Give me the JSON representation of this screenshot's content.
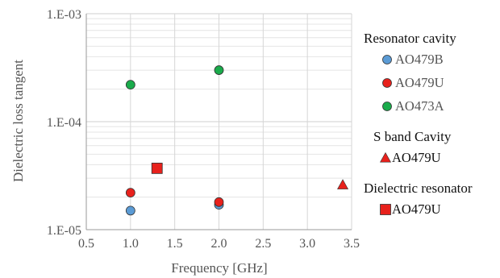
{
  "chart_data": {
    "type": "scatter",
    "xlabel": "Frequency [GHz]",
    "ylabel": "Dielectric  loss tangent",
    "xlim": [
      0.5,
      3.5
    ],
    "ylim": [
      1e-05,
      0.001
    ],
    "y_scale": "log",
    "grid": true,
    "x_ticks": [
      "0.5",
      "1.0",
      "1.5",
      "2.0",
      "2.5",
      "3.0",
      "3.5"
    ],
    "y_ticks": [
      "1.E-05",
      "1.E-04",
      "1.E-03"
    ],
    "legend_placement": "right",
    "groups": [
      {
        "title": "Resonator cavity",
        "series": [
          {
            "name": "AO479B",
            "marker": "circle",
            "color": "#5b9bd5",
            "points": [
              {
                "x": 1.0,
                "y": 1.5e-05
              },
              {
                "x": 2.0,
                "y": 1.7e-05
              }
            ]
          },
          {
            "name": "AO479U",
            "marker": "circle",
            "color": "#e8211c",
            "points": [
              {
                "x": 1.0,
                "y": 2.2e-05
              },
              {
                "x": 2.0,
                "y": 1.8e-05
              }
            ]
          },
          {
            "name": "AO473A",
            "marker": "circle",
            "color": "#1aab4b",
            "points": [
              {
                "x": 1.0,
                "y": 0.00022
              },
              {
                "x": 2.0,
                "y": 0.0003
              }
            ]
          }
        ]
      },
      {
        "title": "S band Cavity",
        "series": [
          {
            "name": "AO479U",
            "marker": "triangle",
            "color": "#e8211c",
            "points": [
              {
                "x": 3.4,
                "y": 2.6e-05
              }
            ]
          }
        ]
      },
      {
        "title": "Dielectric  resonator",
        "series": [
          {
            "name": "AO479U",
            "marker": "square",
            "color": "#e8211c",
            "points": [
              {
                "x": 1.3,
                "y": 3.7e-05
              }
            ]
          }
        ]
      }
    ]
  }
}
